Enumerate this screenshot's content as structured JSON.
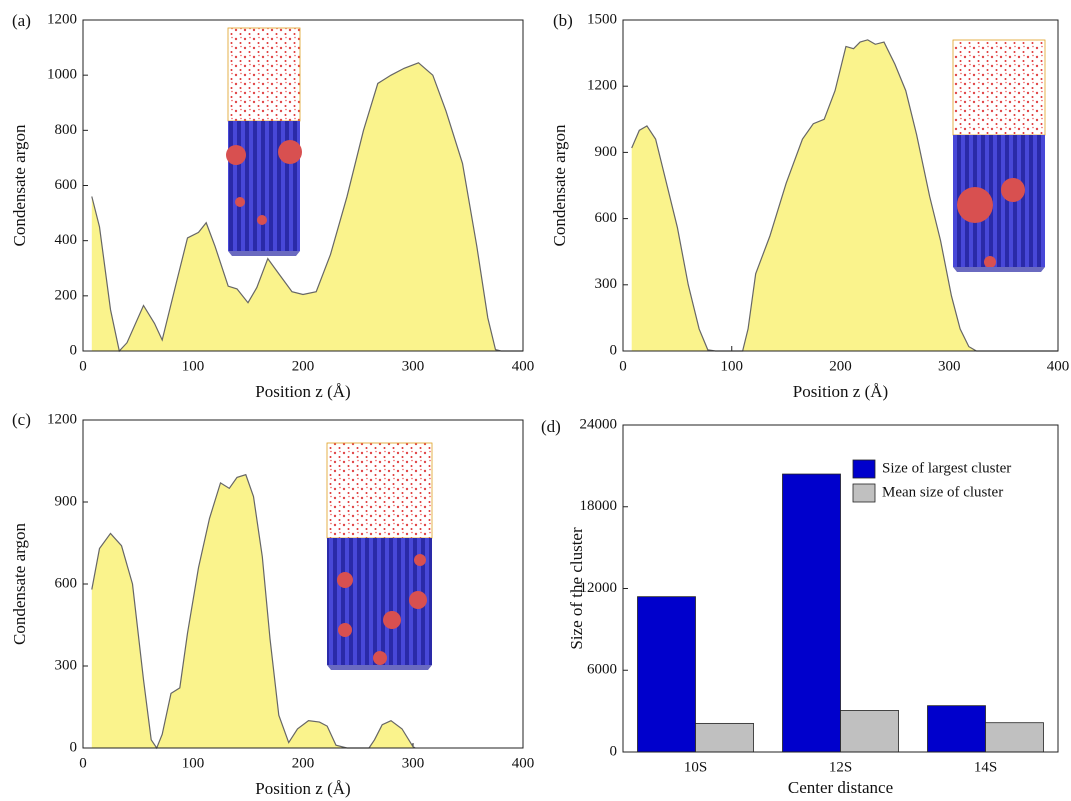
{
  "chart_data": [
    {
      "type": "area",
      "label": "(a)",
      "x_label": "Position z (Å)",
      "y_label": "Condensate argon",
      "color": "#faf38c",
      "x": [
        8,
        15,
        25,
        33,
        40,
        55,
        65,
        72,
        85,
        95,
        105,
        112,
        120,
        132,
        140,
        150,
        158,
        168,
        178,
        190,
        200,
        212,
        225,
        240,
        255,
        268,
        280,
        292,
        305,
        318,
        330,
        345,
        358,
        368,
        375,
        380,
        400
      ],
      "values": [
        560,
        450,
        150,
        0,
        30,
        165,
        100,
        40,
        250,
        410,
        430,
        465,
        380,
        235,
        225,
        175,
        230,
        335,
        280,
        215,
        205,
        215,
        350,
        560,
        800,
        970,
        1000,
        1025,
        1045,
        1000,
        870,
        680,
        380,
        120,
        5,
        0,
        0
      ],
      "xlim": [
        0,
        400
      ],
      "xticks": [
        0,
        100,
        200,
        300,
        400
      ],
      "ylim": [
        0,
        1200
      ],
      "yticks": [
        0,
        200,
        400,
        600,
        800,
        1000,
        1200
      ]
    },
    {
      "type": "area",
      "label": "(b)",
      "x_label": "Position z (Å)",
      "y_label": "Condensate argon",
      "color": "#faf38c",
      "x": [
        8,
        15,
        22,
        30,
        40,
        50,
        60,
        70,
        78,
        85,
        110,
        115,
        122,
        135,
        150,
        165,
        175,
        185,
        195,
        205,
        212,
        218,
        225,
        232,
        240,
        250,
        260,
        270,
        282,
        292,
        302,
        310,
        318,
        325,
        400
      ],
      "values": [
        920,
        1000,
        1020,
        960,
        760,
        560,
        300,
        100,
        5,
        0,
        0,
        100,
        350,
        520,
        760,
        960,
        1030,
        1050,
        1180,
        1380,
        1370,
        1400,
        1410,
        1390,
        1400,
        1300,
        1180,
        980,
        700,
        500,
        250,
        100,
        20,
        0,
        0
      ],
      "xlim": [
        0,
        400
      ],
      "xticks": [
        0,
        100,
        200,
        300,
        400
      ],
      "ylim": [
        0,
        1500
      ],
      "yticks": [
        0,
        300,
        600,
        900,
        1200,
        1500
      ]
    },
    {
      "type": "area",
      "label": "(c)",
      "x_label": "Position z (Å)",
      "y_label": "Condensate argon",
      "color": "#faf38c",
      "x": [
        8,
        15,
        25,
        35,
        45,
        55,
        62,
        67,
        72,
        80,
        88,
        95,
        105,
        115,
        125,
        133,
        140,
        148,
        155,
        163,
        170,
        178,
        187,
        195,
        205,
        215,
        222,
        230,
        240,
        260,
        265,
        272,
        280,
        290,
        300,
        302
      ],
      "values": [
        580,
        730,
        785,
        740,
        600,
        250,
        30,
        0,
        50,
        200,
        220,
        420,
        660,
        840,
        970,
        950,
        990,
        1000,
        920,
        700,
        400,
        120,
        20,
        70,
        100,
        95,
        80,
        10,
        0,
        0,
        30,
        85,
        100,
        70,
        5,
        0
      ],
      "xlim": [
        0,
        400
      ],
      "xticks": [
        0,
        100,
        200,
        300,
        400
      ],
      "ylim": [
        0,
        1200
      ],
      "yticks": [
        0,
        300,
        600,
        900,
        1200
      ]
    },
    {
      "type": "bar",
      "label": "(d)",
      "x_label": "Center distance",
      "y_label": "Size of the cluster",
      "categories": [
        "10S",
        "12S",
        "14S"
      ],
      "series": [
        {
          "name": "Size of largest cluster",
          "color": "#0000cc",
          "values": [
            11400,
            20400,
            3400
          ]
        },
        {
          "name": "Mean size of cluster",
          "color": "#c0c0c0",
          "values": [
            2100,
            3050,
            2150
          ]
        }
      ],
      "ylim": [
        0,
        24000
      ],
      "yticks": [
        0,
        6000,
        12000,
        18000,
        24000
      ],
      "legend": "upper right"
    }
  ]
}
